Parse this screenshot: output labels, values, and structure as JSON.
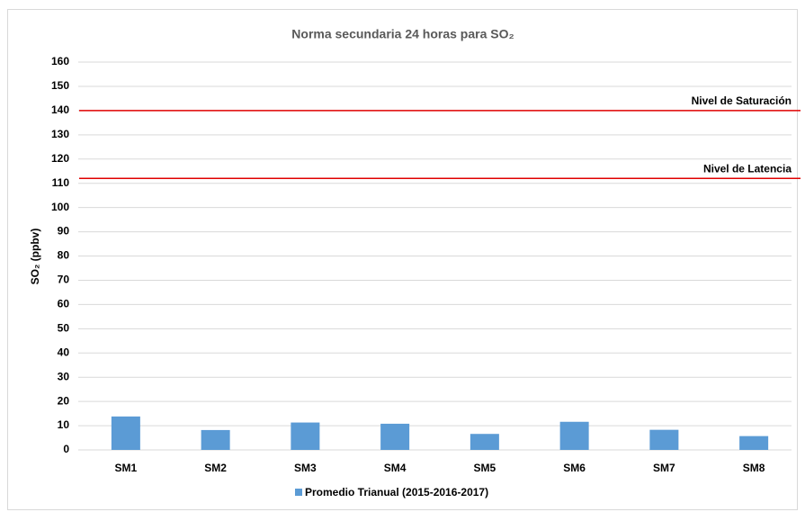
{
  "chart_data": {
    "type": "bar",
    "title": "Norma secundaria 24 horas para SO₂",
    "ylabel": "SO₂ (ppbv)",
    "categories": [
      "SM1",
      "SM2",
      "SM3",
      "SM4",
      "SM5",
      "SM6",
      "SM7",
      "SM8"
    ],
    "series": [
      {
        "name": "Promedio Trianual (2015-2016-2017)",
        "color": "#5b9bd5",
        "values": [
          13.8,
          8.2,
          11.3,
          10.8,
          6.6,
          11.6,
          8.3,
          5.7
        ]
      }
    ],
    "reference_lines": [
      {
        "value": 140,
        "label": "Nivel de Saturación",
        "color": "#e00000"
      },
      {
        "value": 112,
        "label": "Nivel de Latencia",
        "color": "#e00000"
      }
    ],
    "ylim": [
      0,
      160
    ],
    "yticks": [
      0,
      10,
      20,
      30,
      40,
      50,
      60,
      70,
      80,
      90,
      100,
      110,
      120,
      130,
      140,
      150,
      160
    ],
    "grid": true,
    "legend": "bottom"
  }
}
